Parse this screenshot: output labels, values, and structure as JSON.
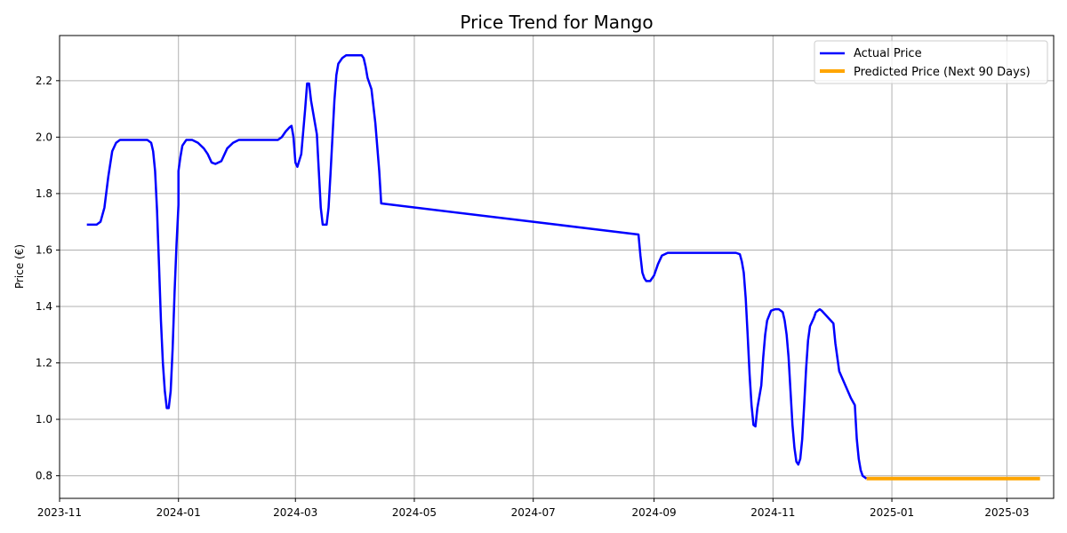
{
  "chart_data": {
    "type": "line",
    "title": "Price Trend for Mango",
    "xlabel": "",
    "ylabel": "Price (€)",
    "grid": true,
    "legend_position": "top-right",
    "xlim": [
      "2023-11-01",
      "2025-03-25"
    ],
    "ylim": [
      0.72,
      2.36
    ],
    "x_ticks": [
      "2023-11",
      "2024-01",
      "2024-03",
      "2024-05",
      "2024-07",
      "2024-09",
      "2024-11",
      "2025-01",
      "2025-03"
    ],
    "y_ticks": [
      "0.8",
      "1.0",
      "1.2",
      "1.4",
      "1.6",
      "1.8",
      "2.0",
      "2.2"
    ],
    "series": [
      {
        "name": "Actual Price",
        "color": "#0000ff",
        "points": [
          [
            "2023-11-15",
            1.69
          ],
          [
            "2023-11-20",
            1.69
          ],
          [
            "2023-11-22",
            1.7
          ],
          [
            "2023-11-24",
            1.75
          ],
          [
            "2023-11-26",
            1.86
          ],
          [
            "2023-11-28",
            1.95
          ],
          [
            "2023-11-30",
            1.98
          ],
          [
            "2023-12-02",
            1.99
          ],
          [
            "2023-12-05",
            1.99
          ],
          [
            "2023-12-10",
            1.99
          ],
          [
            "2023-12-16",
            1.99
          ],
          [
            "2023-12-18",
            1.98
          ],
          [
            "2023-12-19",
            1.95
          ],
          [
            "2023-12-20",
            1.88
          ],
          [
            "2023-12-21",
            1.74
          ],
          [
            "2023-12-22",
            1.55
          ],
          [
            "2023-12-23",
            1.35
          ],
          [
            "2023-12-24",
            1.2
          ],
          [
            "2023-12-25",
            1.1
          ],
          [
            "2023-12-26",
            1.04
          ],
          [
            "2023-12-27",
            1.04
          ],
          [
            "2023-12-28",
            1.1
          ],
          [
            "2023-12-29",
            1.25
          ],
          [
            "2023-12-30",
            1.45
          ],
          [
            "2023-12-31",
            1.62
          ],
          [
            "2024-01-01",
            1.76
          ],
          [
            "2024-01-01",
            1.88
          ],
          [
            "2024-01-02",
            1.93
          ],
          [
            "2024-01-03",
            1.97
          ],
          [
            "2024-01-05",
            1.99
          ],
          [
            "2024-01-08",
            1.99
          ],
          [
            "2024-01-11",
            1.98
          ],
          [
            "2024-01-14",
            1.96
          ],
          [
            "2024-01-16",
            1.94
          ],
          [
            "2024-01-18",
            1.91
          ],
          [
            "2024-01-20",
            1.905
          ],
          [
            "2024-01-23",
            1.915
          ],
          [
            "2024-01-26",
            1.96
          ],
          [
            "2024-01-29",
            1.98
          ],
          [
            "2024-02-01",
            1.99
          ],
          [
            "2024-02-10",
            1.99
          ],
          [
            "2024-02-21",
            1.99
          ],
          [
            "2024-02-23",
            2.0
          ],
          [
            "2024-02-25",
            2.02
          ],
          [
            "2024-02-27",
            2.035
          ],
          [
            "2024-02-28",
            2.04
          ],
          [
            "2024-02-29",
            2.0
          ],
          [
            "2024-03-01",
            1.91
          ],
          [
            "2024-03-02",
            1.895
          ],
          [
            "2024-03-04",
            1.94
          ],
          [
            "2024-03-06",
            2.1
          ],
          [
            "2024-03-07",
            2.19
          ],
          [
            "2024-03-08",
            2.19
          ],
          [
            "2024-03-09",
            2.13
          ],
          [
            "2024-03-12",
            2.01
          ],
          [
            "2024-03-13",
            1.88
          ],
          [
            "2024-03-14",
            1.75
          ],
          [
            "2024-03-15",
            1.69
          ],
          [
            "2024-03-17",
            1.69
          ],
          [
            "2024-03-18",
            1.75
          ],
          [
            "2024-03-19",
            1.87
          ],
          [
            "2024-03-20",
            2.0
          ],
          [
            "2024-03-21",
            2.13
          ],
          [
            "2024-03-22",
            2.22
          ],
          [
            "2024-03-23",
            2.26
          ],
          [
            "2024-03-25",
            2.28
          ],
          [
            "2024-03-27",
            2.29
          ],
          [
            "2024-03-31",
            2.29
          ],
          [
            "2024-04-04",
            2.29
          ],
          [
            "2024-04-05",
            2.28
          ],
          [
            "2024-04-06",
            2.25
          ],
          [
            "2024-04-07",
            2.21
          ],
          [
            "2024-04-09",
            2.17
          ],
          [
            "2024-04-11",
            2.05
          ],
          [
            "2024-04-13",
            1.88
          ],
          [
            "2024-04-14",
            1.765
          ],
          [
            "2024-08-24",
            1.655
          ],
          [
            "2024-08-25",
            1.58
          ],
          [
            "2024-08-26",
            1.52
          ],
          [
            "2024-08-27",
            1.5
          ],
          [
            "2024-08-28",
            1.49
          ],
          [
            "2024-08-30",
            1.49
          ],
          [
            "2024-09-01",
            1.51
          ],
          [
            "2024-09-03",
            1.55
          ],
          [
            "2024-09-05",
            1.58
          ],
          [
            "2024-09-08",
            1.59
          ],
          [
            "2024-09-15",
            1.59
          ],
          [
            "2024-10-01",
            1.59
          ],
          [
            "2024-10-13",
            1.59
          ],
          [
            "2024-10-15",
            1.585
          ],
          [
            "2024-10-16",
            1.56
          ],
          [
            "2024-10-17",
            1.52
          ],
          [
            "2024-10-18",
            1.43
          ],
          [
            "2024-10-19",
            1.3
          ],
          [
            "2024-10-20",
            1.16
          ],
          [
            "2024-10-21",
            1.05
          ],
          [
            "2024-10-22",
            0.98
          ],
          [
            "2024-10-23",
            0.975
          ],
          [
            "2024-10-24",
            1.04
          ],
          [
            "2024-10-26",
            1.12
          ],
          [
            "2024-10-27",
            1.22
          ],
          [
            "2024-10-28",
            1.3
          ],
          [
            "2024-10-29",
            1.35
          ],
          [
            "2024-10-31",
            1.385
          ],
          [
            "2024-11-02",
            1.39
          ],
          [
            "2024-11-04",
            1.39
          ],
          [
            "2024-11-06",
            1.38
          ],
          [
            "2024-11-07",
            1.35
          ],
          [
            "2024-11-08",
            1.3
          ],
          [
            "2024-11-09",
            1.22
          ],
          [
            "2024-11-10",
            1.1
          ],
          [
            "2024-11-11",
            0.98
          ],
          [
            "2024-11-12",
            0.9
          ],
          [
            "2024-11-13",
            0.85
          ],
          [
            "2024-11-14",
            0.84
          ],
          [
            "2024-11-15",
            0.86
          ],
          [
            "2024-11-16",
            0.93
          ],
          [
            "2024-11-17",
            1.05
          ],
          [
            "2024-11-18",
            1.18
          ],
          [
            "2024-11-19",
            1.28
          ],
          [
            "2024-11-20",
            1.33
          ],
          [
            "2024-11-22",
            1.36
          ],
          [
            "2024-11-23",
            1.38
          ],
          [
            "2024-11-25",
            1.39
          ],
          [
            "2024-11-26",
            1.385
          ],
          [
            "2024-11-28",
            1.37
          ],
          [
            "2024-11-30",
            1.355
          ],
          [
            "2024-12-02",
            1.34
          ],
          [
            "2024-12-03",
            1.27
          ],
          [
            "2024-12-05",
            1.17
          ],
          [
            "2024-12-11",
            1.075
          ],
          [
            "2024-12-13",
            1.05
          ],
          [
            "2024-12-14",
            0.93
          ],
          [
            "2024-12-15",
            0.86
          ],
          [
            "2024-12-16",
            0.82
          ],
          [
            "2024-12-17",
            0.8
          ],
          [
            "2024-12-19",
            0.79
          ]
        ]
      },
      {
        "name": "Predicted Price (Next 90 Days)",
        "color": "#ffa500",
        "points": [
          [
            "2024-12-19",
            0.79
          ],
          [
            "2025-03-18",
            0.79
          ]
        ]
      }
    ]
  }
}
